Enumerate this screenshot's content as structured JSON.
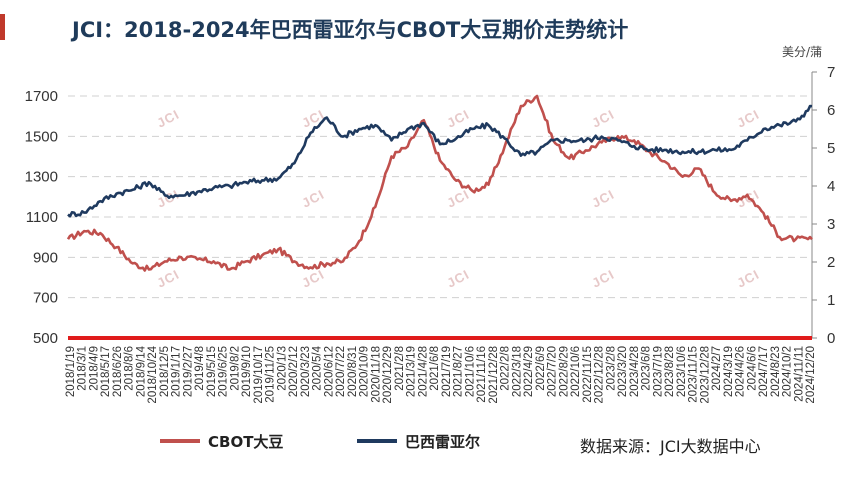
{
  "title": "JCI：2018-2024年巴西雷亚尔与CBOT大豆期价走势统计",
  "right_axis_unit": "美分/蒲",
  "source": "数据来源：JCI大数据中心",
  "watermark_text": "JCI",
  "colors": {
    "cbot": "#c0504d",
    "brl": "#1f3a5f",
    "axis_line": "#e01b1b",
    "title": "#1f3b5a"
  },
  "chart_data": {
    "type": "line",
    "title": "JCI：2018-2024年巴西雷亚尔与CBOT大豆期价走势统计",
    "xlabel": "",
    "ylabel": "",
    "y2label": "美分/蒲",
    "ylim": [
      500,
      1700
    ],
    "y_ticks": [
      500,
      700,
      900,
      1100,
      1300,
      1500,
      1700
    ],
    "y2lim": [
      0,
      7
    ],
    "y2_ticks": [
      0,
      1,
      2,
      3,
      4,
      5,
      6,
      7
    ],
    "grid": "horizontal dashed",
    "legend": "bottom-left",
    "x_tick_labels": [
      "2018/1/19",
      "2018/3/1",
      "2018/4/9",
      "2018/5/17",
      "2018/6/26",
      "2018/8/6",
      "2018/9/14",
      "2018/10/24",
      "2018/12/5",
      "2019/1/17",
      "2019/2/27",
      "2019/4/8",
      "2019/5/15",
      "2019/6/25",
      "2019/8/2",
      "2019/9/10",
      "2019/10/17",
      "2019/11/25",
      "2020/1/3",
      "2020/2/12",
      "2020/3/23",
      "2020/5/4",
      "2020/6/12",
      "2020/7/22",
      "2020/8/31",
      "2020/10/9",
      "2020/11/18",
      "2020/12/29",
      "2021/2/8",
      "2021/3/19",
      "2021/4/28",
      "2021/6/8",
      "2021/7/19",
      "2021/8/27",
      "2021/10/6",
      "2021/11/16",
      "2021/12/28",
      "2022/2/8",
      "2022/3/18",
      "2022/4/29",
      "2022/6/9",
      "2022/7/20",
      "2022/8/29",
      "2022/10/6",
      "2022/11/15",
      "2022/12/28",
      "2023/2/8",
      "2023/3/20",
      "2023/4/28",
      "2023/6/8",
      "2023/7/19",
      "2023/8/28",
      "2023/10/6",
      "2023/11/15",
      "2023/12/28",
      "2024/2/7",
      "2024/3/19",
      "2024/4/26",
      "2024/6/6",
      "2024/7/17",
      "2024/8/23",
      "2024/10/2",
      "2024/11/11",
      "2024/12/20"
    ],
    "x": [
      2018.05,
      2018.2,
      2018.35,
      2018.5,
      2018.65,
      2018.8,
      2018.95,
      2019.1,
      2019.25,
      2019.4,
      2019.55,
      2019.7,
      2019.85,
      2020.0,
      2020.15,
      2020.3,
      2020.45,
      2020.6,
      2020.75,
      2020.9,
      2021.05,
      2021.2,
      2021.35,
      2021.5,
      2021.65,
      2021.8,
      2021.95,
      2022.1,
      2022.25,
      2022.4,
      2022.55,
      2022.7,
      2022.85,
      2023.0,
      2023.15,
      2023.3,
      2023.45,
      2023.6,
      2023.75,
      2023.9,
      2024.05,
      2024.2,
      2024.35,
      2024.5,
      2024.65,
      2024.8,
      2024.95
    ],
    "series": [
      {
        "name": "CBOT大豆",
        "axis": "left",
        "color": "#c0504d",
        "values": [
          990,
          1030,
          1020,
          950,
          870,
          840,
          880,
          900,
          890,
          880,
          840,
          880,
          910,
          940,
          880,
          850,
          870,
          880,
          980,
          1150,
          1400,
          1450,
          1580,
          1380,
          1280,
          1230,
          1260,
          1450,
          1650,
          1700,
          1480,
          1390,
          1430,
          1470,
          1500,
          1480,
          1420,
          1370,
          1300,
          1340,
          1220,
          1180,
          1210,
          1120,
          1000,
          990,
          990
        ]
      },
      {
        "name": "巴西雷亚尔",
        "axis": "right",
        "color": "#1f3a5f",
        "values": [
          3.25,
          3.3,
          3.6,
          3.8,
          3.9,
          4.1,
          3.75,
          3.75,
          3.85,
          3.95,
          4.0,
          4.1,
          4.15,
          4.2,
          4.6,
          5.4,
          5.8,
          5.3,
          5.5,
          5.6,
          5.2,
          5.5,
          5.65,
          5.1,
          5.25,
          5.5,
          5.6,
          5.25,
          4.8,
          4.9,
          5.2,
          5.2,
          5.2,
          5.3,
          5.2,
          5.05,
          4.95,
          4.95,
          4.9,
          4.9,
          4.95,
          4.95,
          5.2,
          5.5,
          5.6,
          5.7,
          6.1
        ]
      }
    ]
  }
}
